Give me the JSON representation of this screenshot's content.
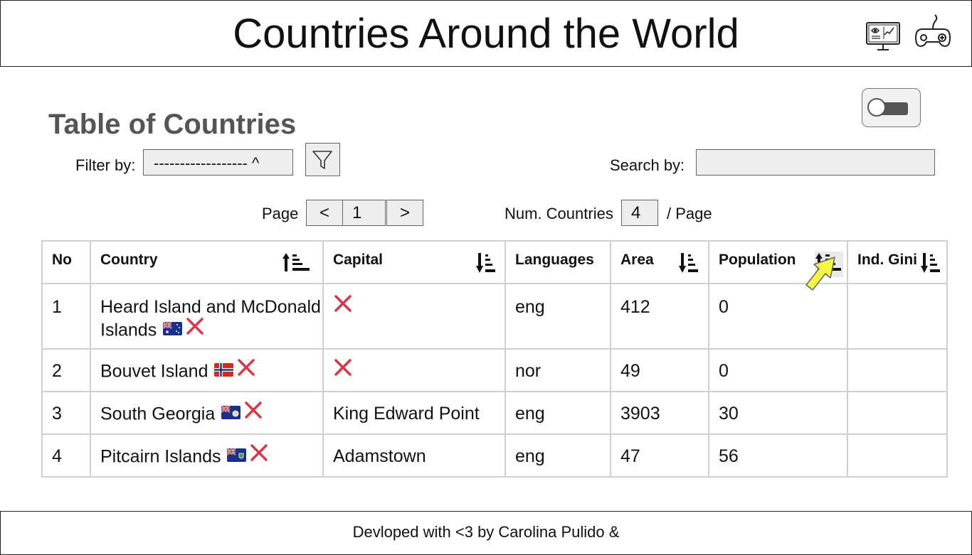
{
  "header": {
    "title": "Countries Around the World"
  },
  "section": {
    "title": "Table of Countries"
  },
  "controls": {
    "filter_label": "Filter by:",
    "filter_value": "------------------ ^",
    "search_label": "Search by:",
    "search_value": "",
    "page_label": "Page",
    "prev_label": "<",
    "page_number": "1",
    "next_label": ">",
    "num_countries_label": "Num. Countries",
    "num_countries_value": "4",
    "per_page_label": "/ Page"
  },
  "table": {
    "columns": [
      "No",
      "Country",
      "Capital",
      "Languages",
      "Area",
      "Population",
      "Ind. Gini"
    ],
    "rows": [
      {
        "no": "1",
        "country": "Heard Island and McDonald Islands",
        "flag": "flag-australia",
        "capital": "",
        "languages": "eng",
        "area": "412",
        "population": "0",
        "gini": ""
      },
      {
        "no": "2",
        "country": "Bouvet Island",
        "flag": "flag-norway",
        "capital": "",
        "languages": "nor",
        "area": "49",
        "population": "0",
        "gini": ""
      },
      {
        "no": "3",
        "country": "South Georgia",
        "flag": "flag-south-georgia",
        "capital": "King Edward Point",
        "languages": "eng",
        "area": "3903",
        "population": "30",
        "gini": ""
      },
      {
        "no": "4",
        "country": "Pitcairn Islands",
        "flag": "flag-pitcairn",
        "capital": "Adamstown",
        "languages": "eng",
        "area": "47",
        "population": "56",
        "gini": ""
      }
    ]
  },
  "footer": {
    "text": "Devloped with <3 by Carolina Pulido &"
  },
  "colors": {
    "x_mark": "#dc3545",
    "cursor": "#f4f442",
    "title_gray": "#555555"
  }
}
